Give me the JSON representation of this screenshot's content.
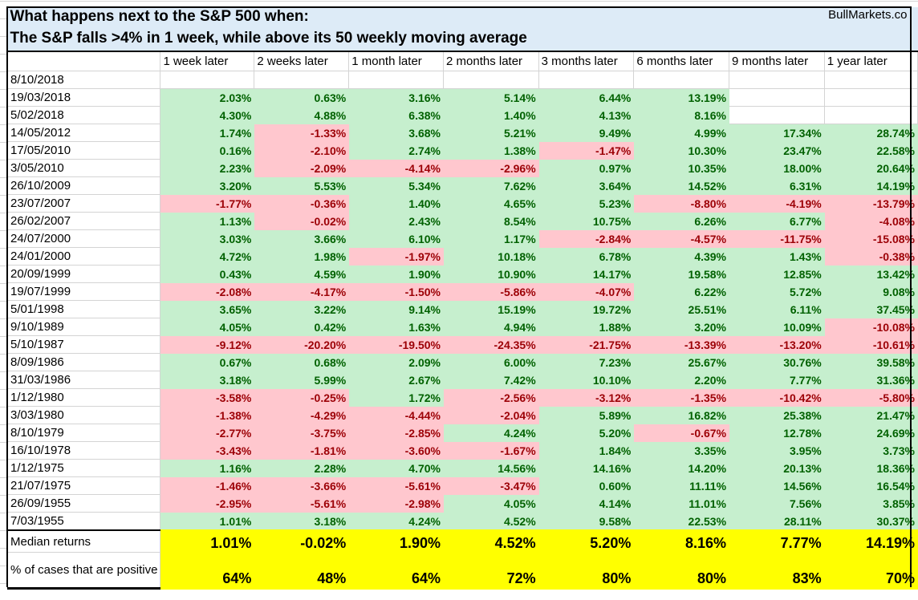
{
  "title_line1": "What happens next to the S&P 500 when:",
  "title_line2": "The S&P falls >4% in 1 week, while above its 50 weekly moving average",
  "brand": "BullMarkets.co",
  "colors": {
    "positive_bg": "#c6efce",
    "positive_text": "#006100",
    "negative_bg": "#ffc7ce",
    "negative_text": "#9c0006",
    "summary_bg": "#ffff00",
    "title_bg": "#ddebf7"
  },
  "chart_data": {
    "type": "table",
    "columns": [
      "1 week later",
      "2 weeks later",
      "1 month later",
      "2 months later",
      "3 months later",
      "6 months later",
      "9 months later",
      "1 year later"
    ],
    "rows": [
      {
        "date": "8/10/2018",
        "values": [
          "",
          "",
          "",
          "",
          "",
          "",
          "",
          ""
        ]
      },
      {
        "date": "19/03/2018",
        "values": [
          "2.03%",
          "0.63%",
          "3.16%",
          "5.14%",
          "6.44%",
          "13.19%",
          "",
          ""
        ]
      },
      {
        "date": "5/02/2018",
        "values": [
          "4.30%",
          "4.88%",
          "6.38%",
          "1.40%",
          "4.13%",
          "8.16%",
          "",
          ""
        ]
      },
      {
        "date": "14/05/2012",
        "values": [
          "1.74%",
          "-1.33%",
          "3.68%",
          "5.21%",
          "9.49%",
          "4.99%",
          "17.34%",
          "28.74%"
        ]
      },
      {
        "date": "17/05/2010",
        "values": [
          "0.16%",
          "-2.10%",
          "2.74%",
          "1.38%",
          "-1.47%",
          "10.30%",
          "23.47%",
          "22.58%"
        ]
      },
      {
        "date": "3/05/2010",
        "values": [
          "2.23%",
          "-2.09%",
          "-4.14%",
          "-2.96%",
          "0.97%",
          "10.35%",
          "18.00%",
          "20.64%"
        ]
      },
      {
        "date": "26/10/2009",
        "values": [
          "3.20%",
          "5.53%",
          "5.34%",
          "7.62%",
          "3.64%",
          "14.52%",
          "6.31%",
          "14.19%"
        ]
      },
      {
        "date": "23/07/2007",
        "values": [
          "-1.77%",
          "-0.36%",
          "1.40%",
          "4.65%",
          "5.23%",
          "-8.80%",
          "-4.19%",
          "-13.79%"
        ]
      },
      {
        "date": "26/02/2007",
        "values": [
          "1.13%",
          "-0.02%",
          "2.43%",
          "8.54%",
          "10.75%",
          "6.26%",
          "6.77%",
          "-4.08%"
        ]
      },
      {
        "date": "24/07/2000",
        "values": [
          "3.03%",
          "3.66%",
          "6.10%",
          "1.17%",
          "-2.84%",
          "-4.57%",
          "-11.75%",
          "-15.08%"
        ]
      },
      {
        "date": "24/01/2000",
        "values": [
          "4.72%",
          "1.98%",
          "-1.97%",
          "10.18%",
          "6.78%",
          "4.39%",
          "1.43%",
          "-0.38%"
        ]
      },
      {
        "date": "20/09/1999",
        "values": [
          "0.43%",
          "4.59%",
          "1.90%",
          "10.90%",
          "14.17%",
          "19.58%",
          "12.85%",
          "13.42%"
        ]
      },
      {
        "date": "19/07/1999",
        "values": [
          "-2.08%",
          "-4.17%",
          "-1.50%",
          "-5.86%",
          "-4.07%",
          "6.22%",
          "5.72%",
          "9.08%"
        ]
      },
      {
        "date": "5/01/1998",
        "values": [
          "3.65%",
          "3.22%",
          "9.14%",
          "15.19%",
          "19.72%",
          "25.51%",
          "6.11%",
          "37.45%"
        ]
      },
      {
        "date": "9/10/1989",
        "values": [
          "4.05%",
          "0.42%",
          "1.63%",
          "4.94%",
          "1.88%",
          "3.20%",
          "10.09%",
          "-10.08%"
        ]
      },
      {
        "date": "5/10/1987",
        "values": [
          "-9.12%",
          "-20.20%",
          "-19.50%",
          "-24.35%",
          "-21.75%",
          "-13.39%",
          "-13.20%",
          "-10.61%"
        ]
      },
      {
        "date": "8/09/1986",
        "values": [
          "0.67%",
          "0.68%",
          "2.09%",
          "6.00%",
          "7.23%",
          "25.67%",
          "30.76%",
          "39.58%"
        ]
      },
      {
        "date": "31/03/1986",
        "values": [
          "3.18%",
          "5.99%",
          "2.67%",
          "7.42%",
          "10.10%",
          "2.20%",
          "7.77%",
          "31.36%"
        ]
      },
      {
        "date": "1/12/1980",
        "values": [
          "-3.58%",
          "-0.25%",
          "1.72%",
          "-2.56%",
          "-3.12%",
          "-1.35%",
          "-10.42%",
          "-5.80%"
        ]
      },
      {
        "date": "3/03/1980",
        "values": [
          "-1.38%",
          "-4.29%",
          "-4.44%",
          "-2.04%",
          "5.89%",
          "16.82%",
          "25.38%",
          "21.47%"
        ]
      },
      {
        "date": "8/10/1979",
        "values": [
          "-2.77%",
          "-3.75%",
          "-2.85%",
          "4.24%",
          "5.20%",
          "-0.67%",
          "12.78%",
          "24.69%"
        ]
      },
      {
        "date": "16/10/1978",
        "values": [
          "-3.43%",
          "-1.81%",
          "-3.60%",
          "-1.67%",
          "1.84%",
          "3.35%",
          "3.95%",
          "3.73%"
        ]
      },
      {
        "date": "1/12/1975",
        "values": [
          "1.16%",
          "2.28%",
          "4.70%",
          "14.56%",
          "14.16%",
          "14.20%",
          "20.13%",
          "18.36%"
        ]
      },
      {
        "date": "21/07/1975",
        "values": [
          "-1.46%",
          "-3.66%",
          "-5.61%",
          "-3.47%",
          "0.60%",
          "11.11%",
          "14.56%",
          "16.54%"
        ]
      },
      {
        "date": "26/09/1955",
        "values": [
          "-2.95%",
          "-5.61%",
          "-2.98%",
          "4.05%",
          "4.14%",
          "11.01%",
          "7.56%",
          "3.85%"
        ]
      },
      {
        "date": "7/03/1955",
        "values": [
          "1.01%",
          "3.18%",
          "4.24%",
          "4.52%",
          "9.58%",
          "22.53%",
          "28.11%",
          "30.37%"
        ]
      }
    ],
    "median": {
      "label": "Median returns",
      "values": [
        "1.01%",
        "-0.02%",
        "1.90%",
        "4.52%",
        "5.20%",
        "8.16%",
        "7.77%",
        "14.19%"
      ]
    },
    "positive_share": {
      "label": "% of cases that are positive",
      "values": [
        "64%",
        "48%",
        "64%",
        "72%",
        "80%",
        "80%",
        "83%",
        "70%"
      ]
    }
  }
}
